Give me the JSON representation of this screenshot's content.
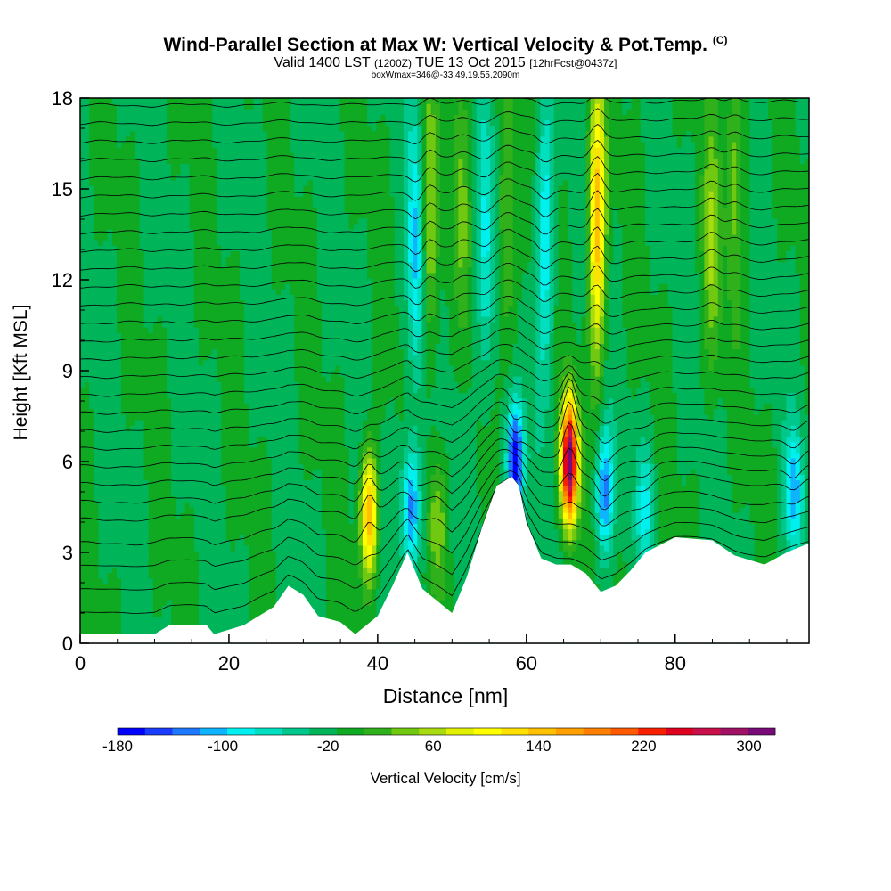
{
  "chart_data": {
    "type": "heatmap",
    "title": "Wind-Parallel Section at Max W: Vertical Velocity & Pot.Temp.",
    "title_mark": "(C)",
    "subtitle_main": "Valid 1400 LST",
    "subtitle_utc": "(1200Z)",
    "subtitle_date": "TUE 13 Oct 2015",
    "subtitle_fcst": "[12hrFcst@0437z]",
    "subtitle2": "boxWmax=346@-33.49,19.55,2090m",
    "xlabel": "Distance [nm]",
    "ylabel": "Height [Kft MSL]",
    "xlim": [
      0,
      98
    ],
    "ylim": [
      0,
      18
    ],
    "x_ticks": [
      "0",
      "20",
      "40",
      "60",
      "80"
    ],
    "y_ticks": [
      "0",
      "3",
      "6",
      "9",
      "12",
      "15",
      "18"
    ],
    "x_tick_values": [
      0,
      20,
      40,
      60,
      80
    ],
    "y_tick_values": [
      0,
      3,
      6,
      9,
      12,
      15,
      18
    ],
    "colorbar": {
      "label": "Vertical Velocity [cm/s]",
      "tick_labels": [
        "-180",
        "-100",
        "-20",
        "60",
        "140",
        "220",
        "300"
      ],
      "tick_values": [
        -180,
        -100,
        -20,
        60,
        140,
        220,
        300
      ],
      "min": -180,
      "max": 320,
      "colors": [
        "#0000ff",
        "#1a3cff",
        "#1e78ff",
        "#0fb4ff",
        "#00f0f0",
        "#00e0c0",
        "#00c88c",
        "#00b45a",
        "#10aa22",
        "#30b01a",
        "#70c810",
        "#a8dc10",
        "#e0f000",
        "#ffff00",
        "#ffe000",
        "#ffc000",
        "#ffa000",
        "#ff8000",
        "#ff5a00",
        "#f82000",
        "#e00020",
        "#c8104a",
        "#a01064",
        "#780a78"
      ]
    },
    "terrain_profile": {
      "x": [
        0,
        10,
        12,
        17,
        18,
        22,
        26,
        28,
        30,
        32,
        35,
        37,
        40,
        42,
        44,
        46,
        48,
        50,
        52,
        54,
        56,
        58,
        59,
        60,
        62,
        64,
        66,
        68,
        70,
        72,
        74,
        76,
        80,
        85,
        88,
        92,
        95,
        98
      ],
      "y": [
        0.3,
        0.3,
        0.6,
        0.6,
        0.3,
        0.6,
        1.2,
        1.9,
        1.6,
        0.9,
        0.7,
        0.3,
        0.9,
        1.9,
        3.0,
        1.8,
        1.4,
        1.0,
        2.2,
        3.8,
        5.2,
        5.5,
        5.2,
        4.0,
        2.8,
        2.6,
        2.6,
        2.3,
        1.7,
        1.9,
        2.4,
        3.0,
        3.5,
        3.4,
        2.9,
        2.6,
        3.0,
        3.3
      ]
    },
    "w_features": [
      {
        "x": 38.8,
        "z": 4.3,
        "amplitude": 170
      },
      {
        "x": 44.5,
        "z": 4.5,
        "amplitude": -120
      },
      {
        "x": 48.0,
        "z": 4.0,
        "amplitude": 55
      },
      {
        "x": 58.5,
        "z": 6.0,
        "amplitude": -170
      },
      {
        "x": 65.8,
        "z": 6.0,
        "amplitude": 346
      },
      {
        "x": 70.5,
        "z": 5.0,
        "amplitude": -110
      },
      {
        "x": 76.0,
        "z": 4.5,
        "amplitude": -60
      },
      {
        "x": 96.0,
        "z": 5.0,
        "amplitude": -90
      },
      {
        "x": 47.0,
        "z": 14.0,
        "amplitude": 80
      },
      {
        "x": 45.2,
        "z": 13.0,
        "amplitude": -90
      },
      {
        "x": 51.5,
        "z": 14.0,
        "amplitude": 40
      },
      {
        "x": 54.5,
        "z": 13.0,
        "amplitude": -70
      },
      {
        "x": 57.5,
        "z": 14.0,
        "amplitude": 60
      },
      {
        "x": 62.5,
        "z": 13.5,
        "amplitude": -80
      },
      {
        "x": 69.5,
        "z": 14.0,
        "amplitude": 165
      },
      {
        "x": 85.0,
        "z": 13.0,
        "amplitude": 60
      },
      {
        "x": 88.0,
        "z": 16.0,
        "amplitude": 55
      }
    ],
    "theta_contour_base_levels_kft": [
      0.8,
      1.6,
      2.4,
      3.2,
      4.0,
      4.6,
      5.2,
      5.8,
      6.4,
      7.0,
      7.6,
      8.2,
      8.8,
      9.4,
      10.0,
      10.6,
      11.2,
      11.8,
      12.4,
      13.0,
      13.6,
      14.2,
      14.8,
      15.4,
      16.0,
      16.6,
      17.2,
      17.8
    ]
  }
}
